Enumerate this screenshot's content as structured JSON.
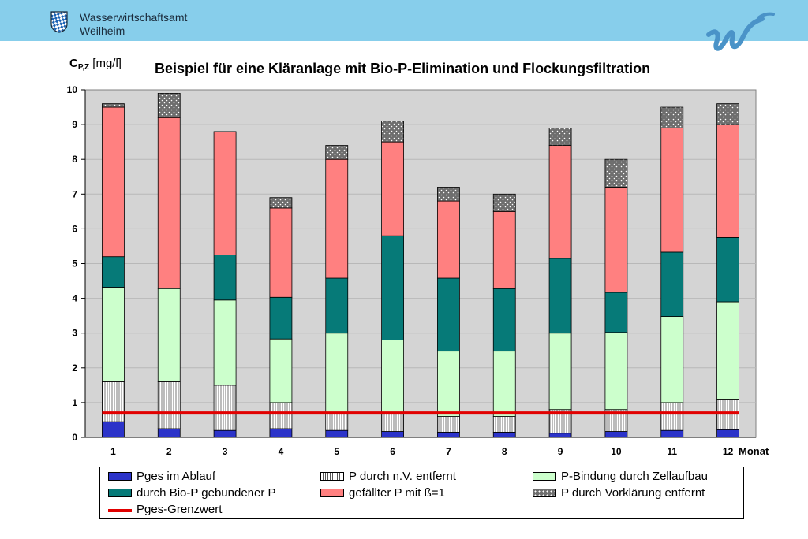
{
  "header": {
    "org_line1": "Wasserwirtschaftsamt",
    "org_line2": "Weilheim",
    "crest_icon": "bavarian-diamond-crest-icon",
    "logo_icon": "wwa-wave-logo-icon"
  },
  "chart_data": {
    "type": "bar",
    "stacked": true,
    "title": "Beispiel für eine Kläranlage mit Bio-P-Elimination und Flockungsfiltration",
    "ylabel_main": "C",
    "ylabel_sub": "P,Z",
    "ylabel_unit": "[mg/l]",
    "xlabel": "Monat",
    "ylim": [
      0,
      10
    ],
    "yticks": [
      "0",
      "1",
      "2",
      "3",
      "4",
      "5",
      "6",
      "7",
      "8",
      "9",
      "10"
    ],
    "categories": [
      "1",
      "2",
      "3",
      "4",
      "5",
      "6",
      "7",
      "8",
      "9",
      "10",
      "11",
      "12"
    ],
    "grid": true,
    "series": [
      {
        "name": "Pges im Ablauf",
        "color": "#2b33c9",
        "pattern": "solid",
        "values": [
          0.45,
          0.25,
          0.2,
          0.25,
          0.2,
          0.17,
          0.15,
          0.15,
          0.12,
          0.17,
          0.2,
          0.22
        ]
      },
      {
        "name": "P durch n.V. entfernt",
        "color": "#ffffff",
        "pattern": "vertical-lines",
        "values": [
          1.15,
          1.35,
          1.3,
          0.75,
          0.5,
          0.53,
          0.45,
          0.45,
          0.68,
          0.63,
          0.8,
          0.88
        ]
      },
      {
        "name": "P-Bindung durch Zellaufbau",
        "color": "#ccffcc",
        "pattern": "solid",
        "values": [
          2.72,
          2.68,
          2.45,
          1.83,
          2.3,
          2.1,
          1.88,
          1.88,
          2.2,
          2.22,
          2.48,
          2.8
        ]
      },
      {
        "name": "durch Bio-P gebundener P",
        "color": "#067a78",
        "pattern": "solid",
        "values": [
          0.88,
          0.0,
          1.3,
          1.2,
          1.58,
          3.0,
          2.1,
          1.8,
          2.15,
          1.15,
          1.85,
          1.85
        ]
      },
      {
        "name": "gefällter P mit ß=1",
        "color": "#ff8080",
        "pattern": "solid",
        "values": [
          4.3,
          4.92,
          3.55,
          2.57,
          3.42,
          2.7,
          2.22,
          2.22,
          3.25,
          3.03,
          3.57,
          3.25
        ]
      },
      {
        "name": "P durch Vorklärung entfernt",
        "color": "#7a7a7a",
        "pattern": "dots",
        "values": [
          0.1,
          0.7,
          0.0,
          0.3,
          0.4,
          0.6,
          0.4,
          0.5,
          0.5,
          0.8,
          0.6,
          0.6
        ]
      }
    ],
    "limit_line": {
      "name": "Pges-Grenzwert",
      "value": 0.7,
      "color": "#e10000"
    },
    "legend_position": "bottom"
  }
}
